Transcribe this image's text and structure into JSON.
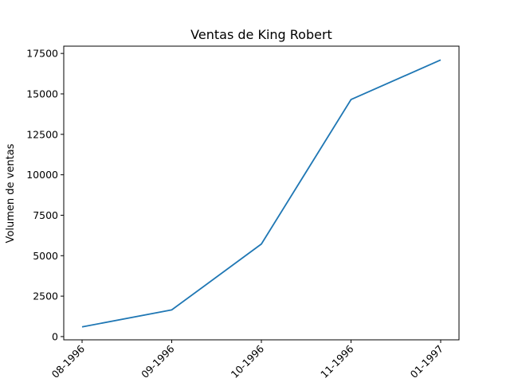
{
  "chart_data": {
    "type": "line",
    "title": "Ventas de King Robert",
    "xlabel": "",
    "ylabel": "Volumen de ventas",
    "categories": [
      "08-1996",
      "09-1996",
      "10-1996",
      "11-1996",
      "01-1997"
    ],
    "series": [
      {
        "values": [
          600,
          1650,
          5720,
          14650,
          17100
        ],
        "color": "#1f77b4"
      }
    ],
    "y_ticks": [
      0,
      2500,
      5000,
      7500,
      10000,
      12500,
      15000,
      17500
    ],
    "ylim": [
      -200,
      17950
    ],
    "grid": false,
    "legend": "none"
  }
}
